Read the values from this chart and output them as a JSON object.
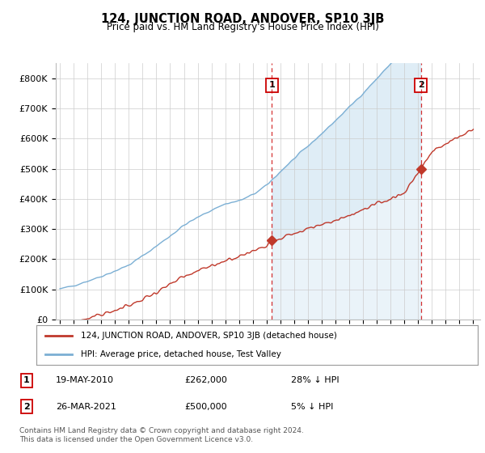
{
  "title": "124, JUNCTION ROAD, ANDOVER, SP10 3JB",
  "subtitle": "Price paid vs. HM Land Registry's House Price Index (HPI)",
  "ylim": [
    0,
    850000
  ],
  "yticks": [
    0,
    100000,
    200000,
    300000,
    400000,
    500000,
    600000,
    700000,
    800000
  ],
  "ytick_labels": [
    "£0",
    "£100K",
    "£200K",
    "£300K",
    "£400K",
    "£500K",
    "£600K",
    "£700K",
    "£800K"
  ],
  "hpi_color": "#7bafd4",
  "hpi_fill_color": "#d6e8f5",
  "price_color": "#c0392b",
  "t1": 2010.375,
  "t2": 2021.208,
  "marker1_price": 262000,
  "marker2_price": 500000,
  "legend_entry1": "124, JUNCTION ROAD, ANDOVER, SP10 3JB (detached house)",
  "legend_entry2": "HPI: Average price, detached house, Test Valley",
  "annotation1_date": "19-MAY-2010",
  "annotation1_price": "£262,000",
  "annotation1_hpi": "28% ↓ HPI",
  "annotation2_date": "26-MAR-2021",
  "annotation2_price": "£500,000",
  "annotation2_hpi": "5% ↓ HPI",
  "footer": "Contains HM Land Registry data © Crown copyright and database right 2024.\nThis data is licensed under the Open Government Licence v3.0.",
  "background_color": "#ffffff",
  "grid_color": "#cccccc"
}
